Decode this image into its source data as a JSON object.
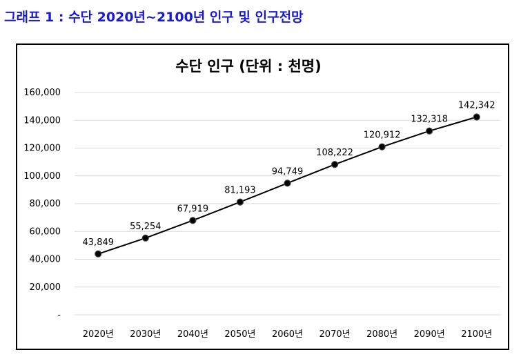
{
  "caption": "그래프 1 : 수단 2020년~2100년 인구 및 인구전망",
  "chart_data": {
    "type": "line",
    "title": "수단 인구 (단위 : 천명)",
    "categories": [
      "2020년",
      "2030년",
      "2040년",
      "2050년",
      "2060년",
      "2070년",
      "2080년",
      "2090년",
      "2100년"
    ],
    "values": [
      43849,
      55254,
      67919,
      81193,
      94749,
      108222,
      120912,
      132318,
      142342
    ],
    "data_labels": [
      "43,849",
      "55,254",
      "67,919",
      "81,193",
      "94,749",
      "108,222",
      "120,912",
      "132,318",
      "142,342"
    ],
    "yticks": [
      "-",
      "20,000",
      "40,000",
      "60,000",
      "80,000",
      "100,000",
      "120,000",
      "140,000",
      "160,000"
    ],
    "ylim": [
      0,
      160000
    ],
    "ystep": 20000,
    "grid": true,
    "legend": "none",
    "line_color": "#000000",
    "marker_color": "#000000"
  }
}
